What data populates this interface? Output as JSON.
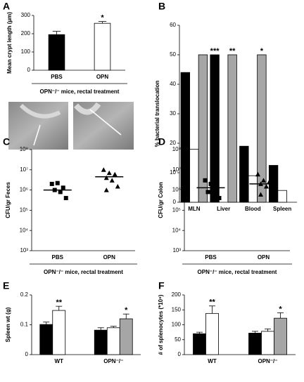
{
  "chart_data": [
    {
      "panel": "A",
      "type": "bar",
      "ylabel": "Mean crypt length (µm)",
      "categories": [
        "PBS",
        "OPN"
      ],
      "values": [
        195,
        257
      ],
      "errors": [
        18,
        10
      ],
      "colors": [
        "#000000",
        "#ffffff"
      ],
      "significance": [
        null,
        "*"
      ],
      "ylim": [
        0,
        300
      ],
      "yticks": [
        0,
        100,
        200,
        300
      ],
      "group_label": "OPN⁻/⁻ mice, rectal treatment"
    },
    {
      "panel": "B",
      "type": "bar",
      "ylabel": "% bacterial translocation",
      "categories": [
        "MLN",
        "Liver",
        "Blood",
        "Spleen"
      ],
      "series": [
        {
          "color": "#000000",
          "values": [
            44,
            50,
            19,
            12.5
          ],
          "significance": [
            null,
            "***",
            null,
            null
          ]
        },
        {
          "color": "#ffffff",
          "values": [
            18,
            0,
            9,
            4
          ],
          "significance": [
            null,
            null,
            null,
            null
          ]
        },
        {
          "color": "#a6a6a6",
          "values": [
            50,
            50,
            50,
            null
          ],
          "significance": [
            null,
            "**",
            "*",
            null
          ]
        }
      ],
      "ylim": [
        0,
        60
      ],
      "yticks": [
        0,
        10,
        20,
        30,
        40,
        50,
        60
      ]
    },
    {
      "panel": "C",
      "type": "dotplot",
      "ylabel": "CFU/gr Feces",
      "categories": [
        "PBS",
        "OPN"
      ],
      "log_scale": true,
      "markers": [
        "square",
        "triangle"
      ],
      "points": [
        [
          2000000,
          2200000,
          1300000,
          1000000,
          800000,
          400000
        ],
        [
          10000000,
          7000000,
          6000000,
          4000000,
          3000000,
          1500000,
          1000000
        ]
      ],
      "means": [
        1000000,
        4500000
      ],
      "ylim": [
        1000,
        100000000
      ],
      "yticks": [
        {
          "value": 1000,
          "label": "10³"
        },
        {
          "value": 10000,
          "label": "10⁴"
        },
        {
          "value": 100000,
          "label": "10⁵"
        },
        {
          "value": 1000000,
          "label": "10⁶"
        },
        {
          "value": 10000000,
          "label": "10⁷"
        },
        {
          "value": 100000000,
          "label": "10⁸"
        }
      ],
      "group_label": "OPN⁻/⁻ mice, rectal treatment"
    },
    {
      "panel": "D",
      "type": "dotplot",
      "ylabel": "CFU/gr Colon",
      "categories": [
        "PBS",
        "OPN"
      ],
      "log_scale": true,
      "markers": [
        "square",
        "triangle"
      ],
      "points": [
        [
          3000000,
          2000000,
          1200000,
          800000,
          400000,
          400000
        ],
        [
          6000000,
          3000000,
          2500000,
          2000000,
          1500000,
          800000,
          600000
        ]
      ],
      "means": [
        1300000,
        2000000
      ],
      "ylim": [
        1000,
        100000000
      ],
      "yticks": [
        {
          "value": 1000,
          "label": "10³"
        },
        {
          "value": 10000,
          "label": "10⁴"
        },
        {
          "value": 100000,
          "label": "10⁵"
        },
        {
          "value": 1000000,
          "label": "10⁶"
        },
        {
          "value": 10000000,
          "label": "10⁷"
        },
        {
          "value": 100000000,
          "label": "10⁸"
        }
      ],
      "group_label": "OPN⁻/⁻ mice, rectal treatment"
    },
    {
      "panel": "E",
      "type": "bar",
      "ylabel": "Spleen wt (g)",
      "categories": [
        "WT",
        "OPN⁻/⁻"
      ],
      "series": [
        {
          "color": "#000000",
          "values": [
            0.101,
            0.082
          ],
          "errors": [
            0.008,
            0.008
          ],
          "significance": [
            null,
            null
          ]
        },
        {
          "color": "#ffffff",
          "values": [
            0.148,
            0.09
          ],
          "errors": [
            0.014,
            0.005
          ],
          "significance": [
            "**",
            null
          ]
        },
        {
          "color": "#a6a6a6",
          "values": [
            null,
            0.12
          ],
          "errors": [
            null,
            0.016
          ],
          "significance": [
            null,
            "*"
          ]
        }
      ],
      "ylim": [
        0,
        0.2
      ],
      "yticks": [
        0,
        0.1,
        0.2
      ]
    },
    {
      "panel": "F",
      "type": "bar",
      "ylabel": "# of splenocytes (*10⁶)",
      "categories": [
        "WT",
        "OPN⁻/⁻"
      ],
      "series": [
        {
          "color": "#000000",
          "values": [
            70,
            72
          ],
          "errors": [
            5,
            6
          ],
          "significance": [
            null,
            null
          ]
        },
        {
          "color": "#ffffff",
          "values": [
            138,
            78
          ],
          "errors": [
            25,
            8
          ],
          "significance": [
            "**",
            null
          ]
        },
        {
          "color": "#a6a6a6",
          "values": [
            null,
            122
          ],
          "errors": [
            null,
            18
          ],
          "significance": [
            null,
            "*"
          ]
        }
      ],
      "ylim": [
        0,
        200
      ],
      "yticks": [
        0,
        50,
        100,
        150,
        200
      ]
    }
  ]
}
